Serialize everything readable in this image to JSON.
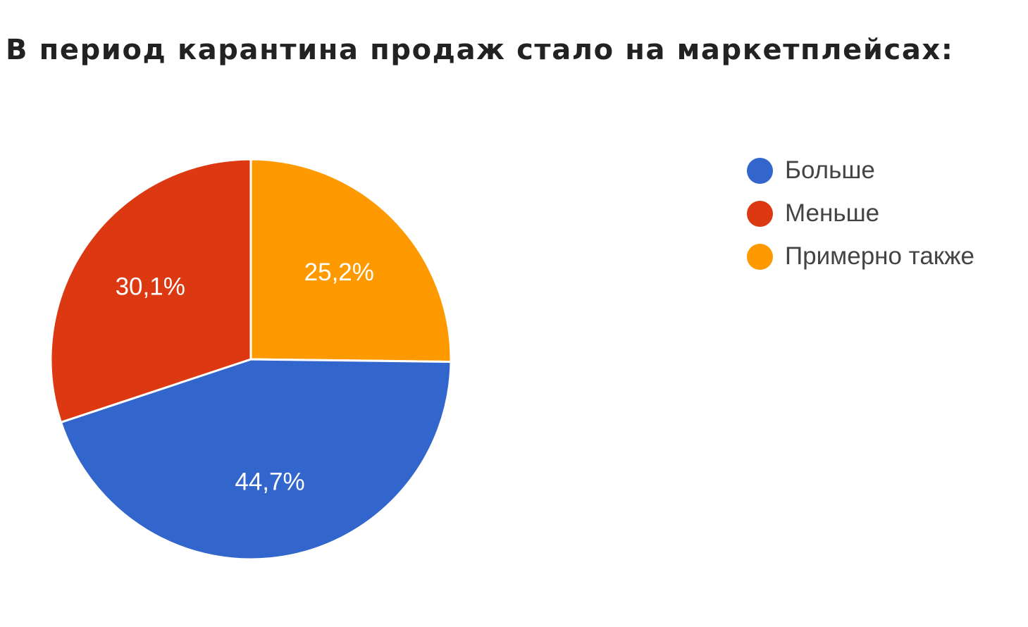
{
  "title": "В период карантина продаж стало на маркетплейсах:",
  "chart_data": {
    "type": "pie",
    "title": "В период карантина продаж стало на маркетплейсах:",
    "slices": [
      {
        "label": "Больше",
        "value": 44.7,
        "value_label": "44,7%",
        "color": "#3366cc"
      },
      {
        "label": "Меньше",
        "value": 30.1,
        "value_label": "30,1%",
        "color": "#dc3912"
      },
      {
        "label": "Примерно также",
        "value": 25.2,
        "value_label": "25,2%",
        "color": "#ff9900"
      }
    ],
    "legend_position": "right",
    "start": "12 o'clock, clockwise, starting with the orange slice"
  }
}
